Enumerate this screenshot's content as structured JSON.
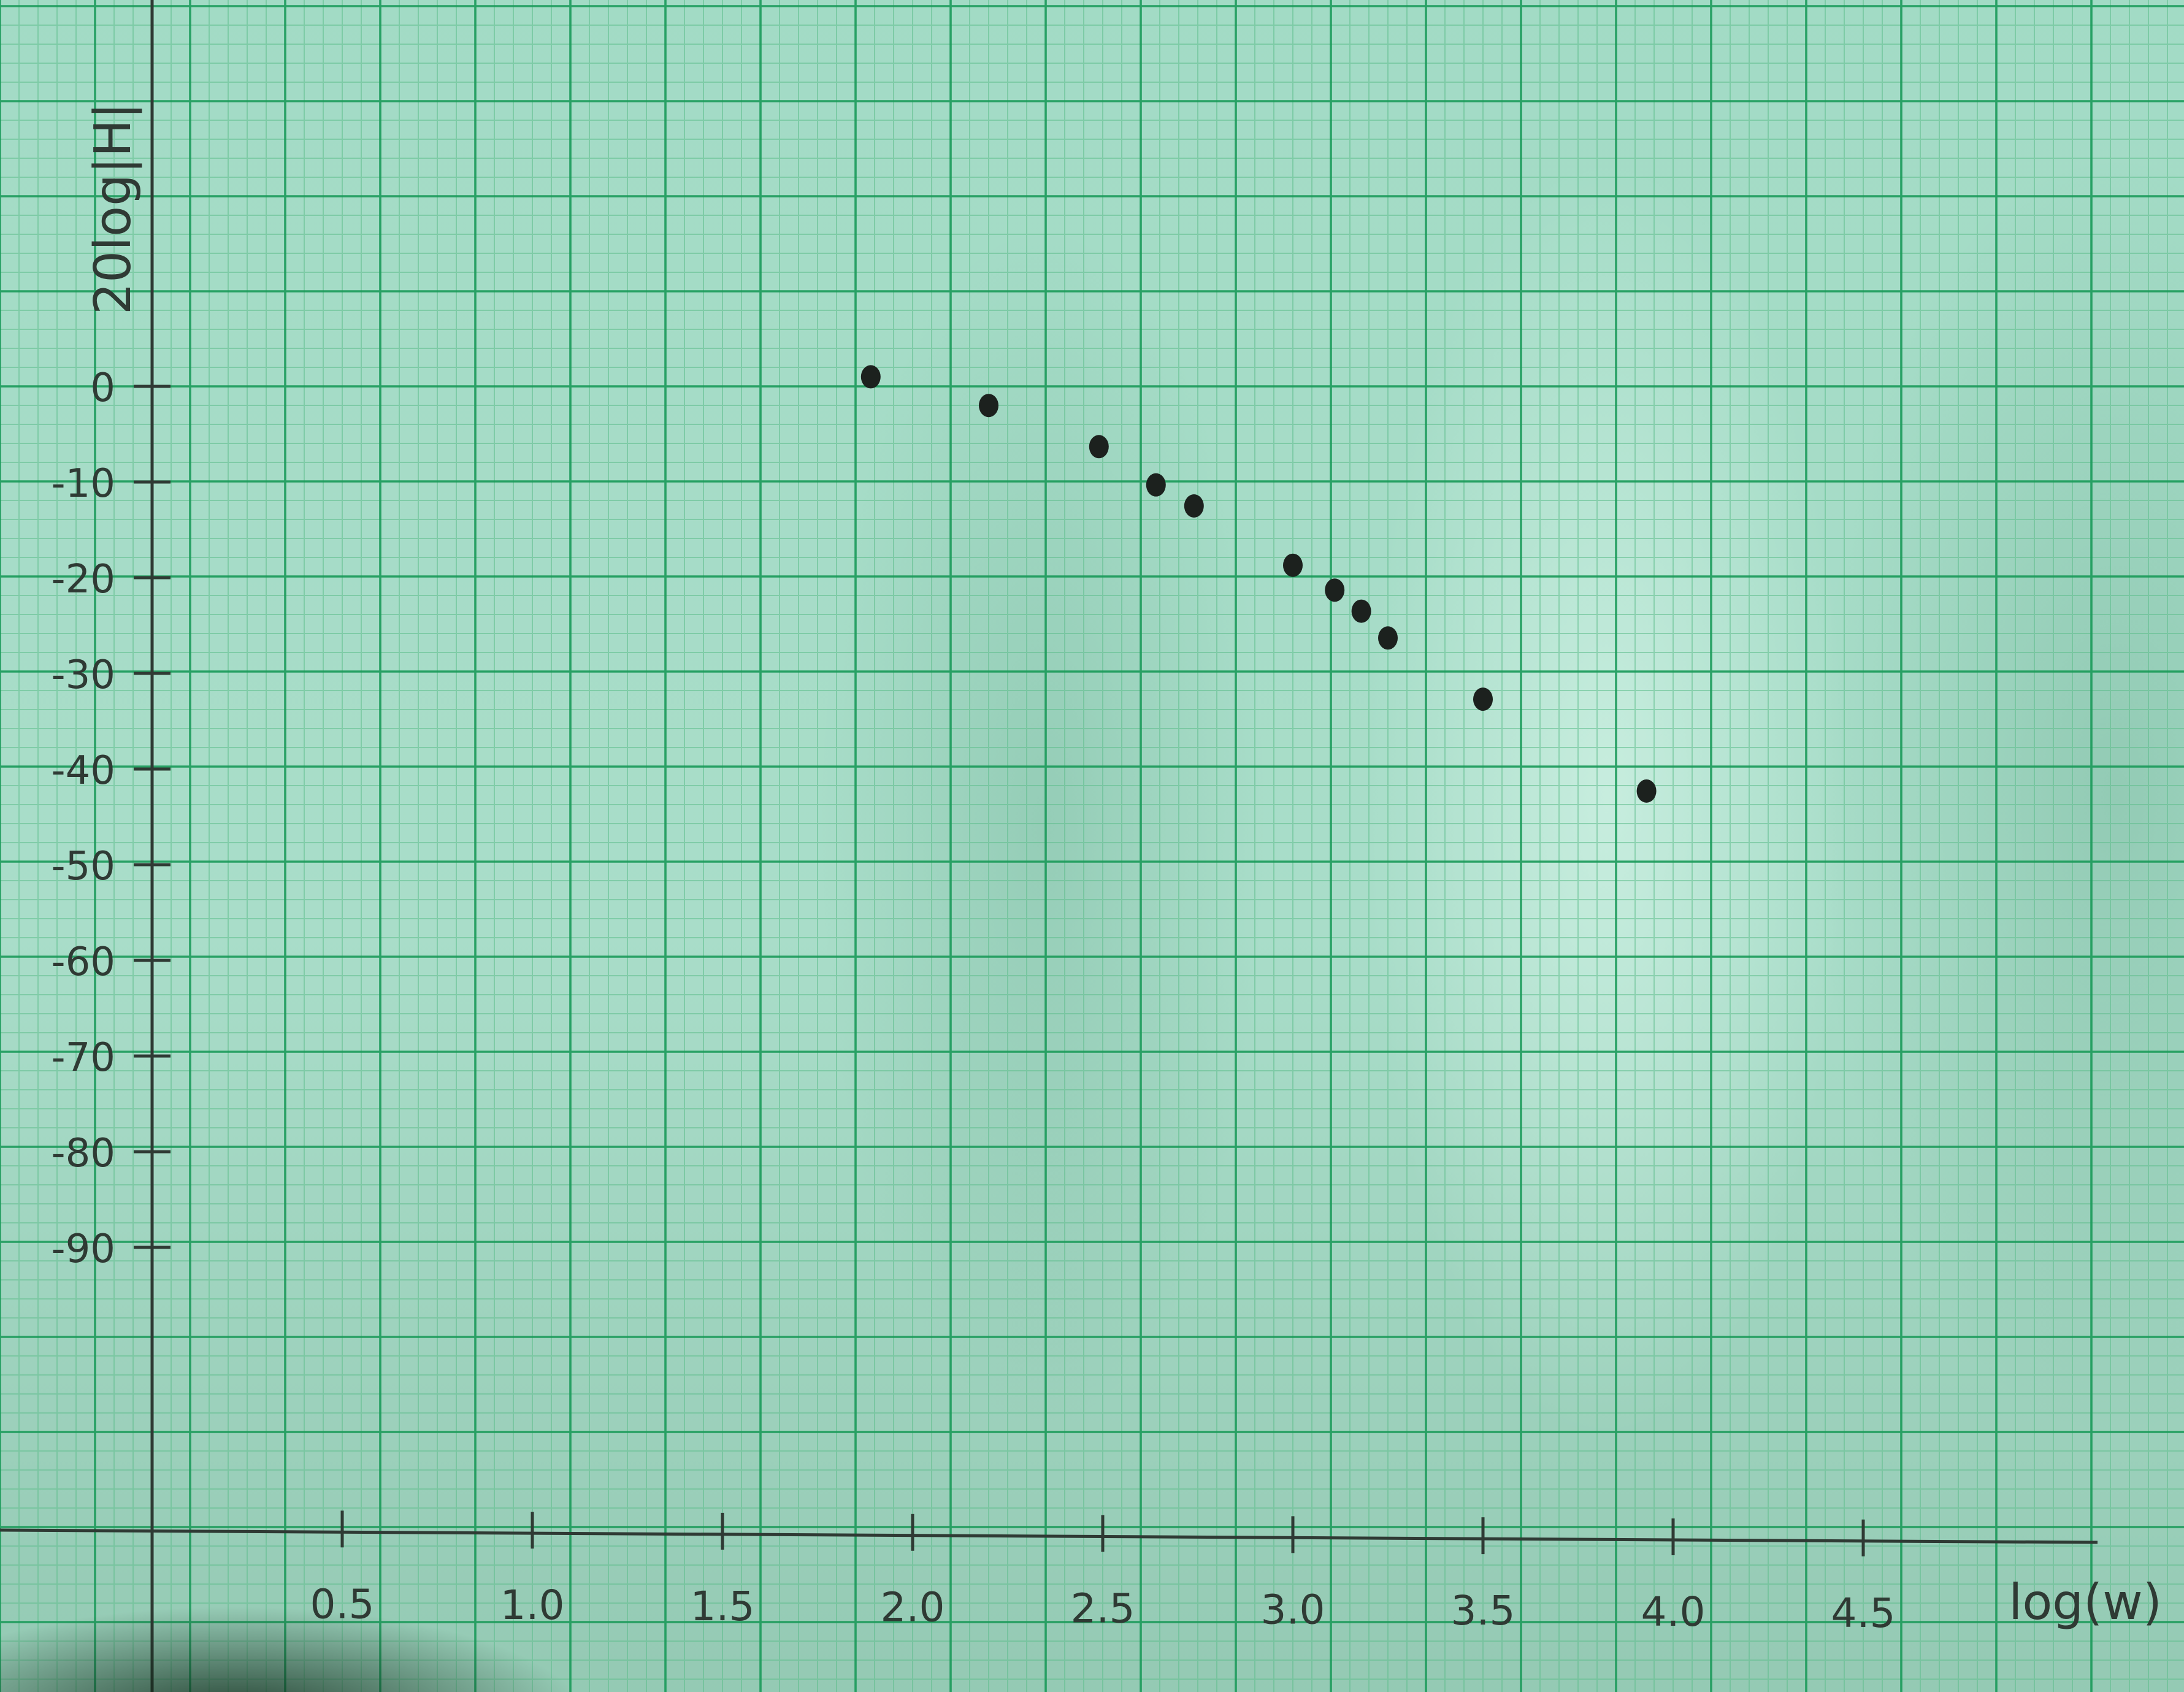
{
  "chart_data": {
    "type": "scatter",
    "title": "",
    "xlabel": "log(w)",
    "ylabel": "20log|H|",
    "xlim": [
      0,
      5.2
    ],
    "ylim": [
      -90,
      0
    ],
    "grid": true,
    "x_ticks": [
      {
        "value": 0.5,
        "label": "0.5"
      },
      {
        "value": 1.0,
        "label": "1.0"
      },
      {
        "value": 1.5,
        "label": "1.5"
      },
      {
        "value": 2.0,
        "label": "2.0"
      },
      {
        "value": 2.5,
        "label": "2.5"
      },
      {
        "value": 3.0,
        "label": "3.0"
      },
      {
        "value": 3.5,
        "label": "3.5"
      },
      {
        "value": 4.0,
        "label": "4.0"
      },
      {
        "value": 4.5,
        "label": "4.5"
      }
    ],
    "y_ticks": [
      {
        "value": 0,
        "label": "0"
      },
      {
        "value": -10,
        "label": "-10"
      },
      {
        "value": -20,
        "label": "-20"
      },
      {
        "value": -30,
        "label": "-30"
      },
      {
        "value": -40,
        "label": "-40"
      },
      {
        "value": -50,
        "label": "-50"
      },
      {
        "value": -60,
        "label": "-60"
      },
      {
        "value": -70,
        "label": "-70"
      },
      {
        "value": -80,
        "label": "-80"
      },
      {
        "value": -90,
        "label": "-90"
      }
    ],
    "points": [
      {
        "x": 1.89,
        "y": 1.0
      },
      {
        "x": 2.2,
        "y": -2.0
      },
      {
        "x": 2.49,
        "y": -6.3
      },
      {
        "x": 2.64,
        "y": -10.3
      },
      {
        "x": 2.74,
        "y": -12.5
      },
      {
        "x": 3.0,
        "y": -18.7
      },
      {
        "x": 3.11,
        "y": -21.3
      },
      {
        "x": 3.18,
        "y": -23.5
      },
      {
        "x": 3.25,
        "y": -26.3
      },
      {
        "x": 3.5,
        "y": -32.7
      },
      {
        "x": 3.93,
        "y": -42.3
      }
    ]
  },
  "colors": {
    "paper": "#a9ddc9",
    "grid_major": "#1b9a5a",
    "grid_minor": "#5fbd8c",
    "ink": "#2f3a34",
    "dots": "#1c211e"
  }
}
